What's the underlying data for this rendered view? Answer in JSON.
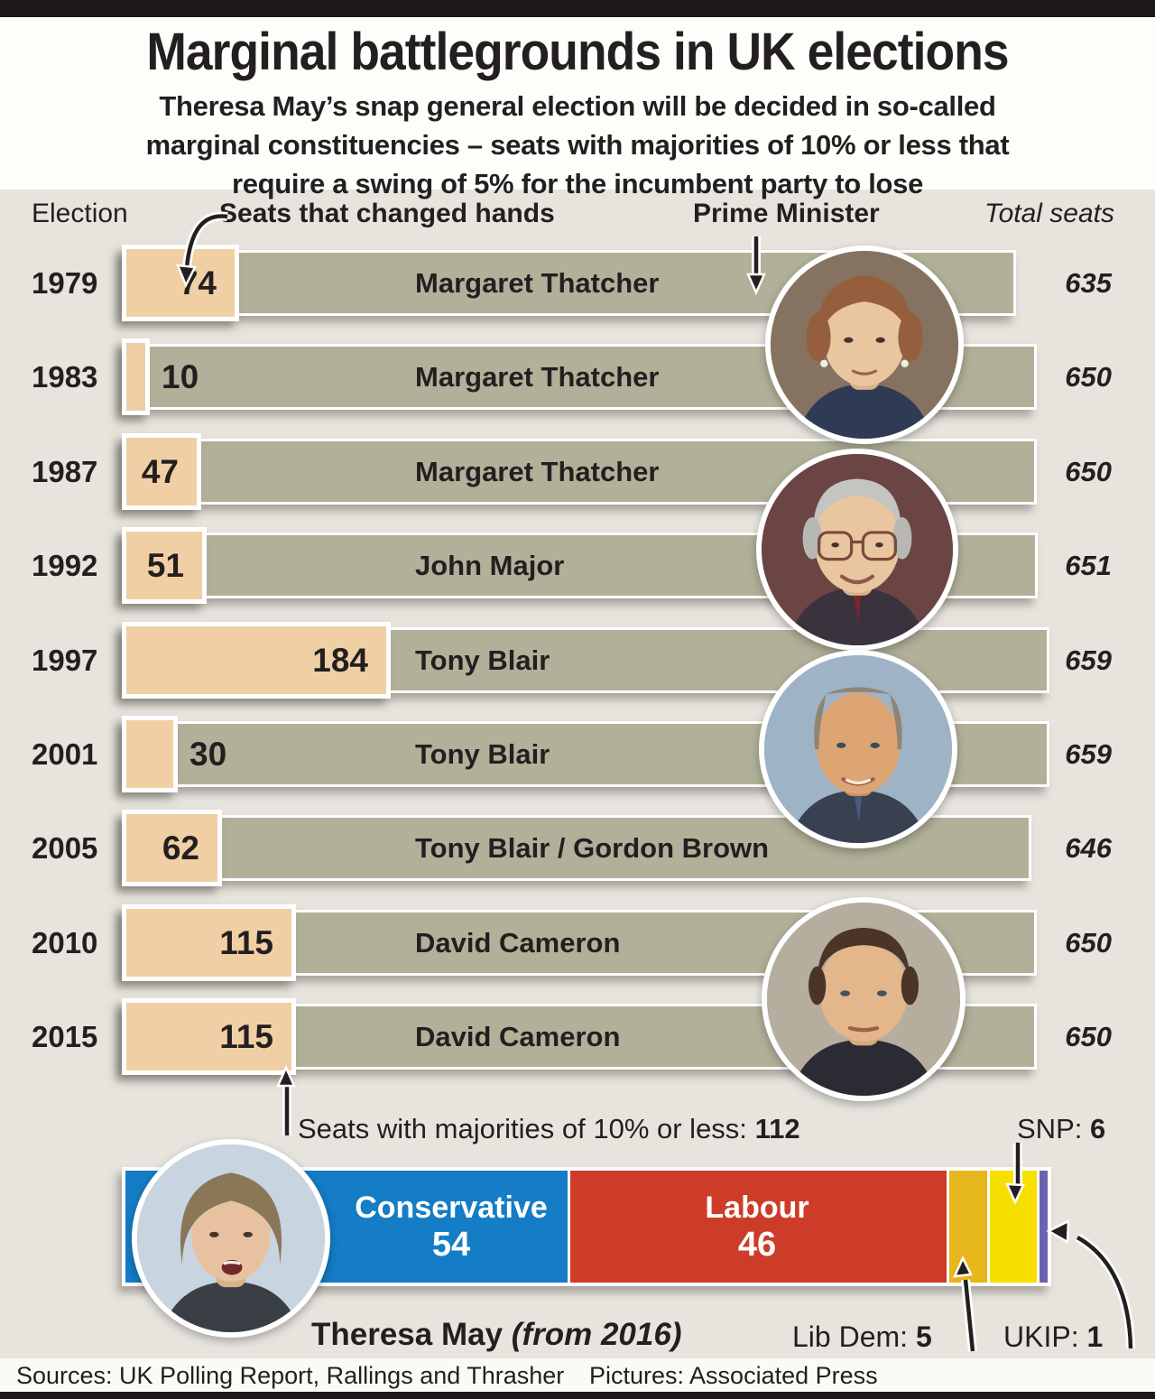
{
  "title": "Marginal battlegrounds in UK elections",
  "subtitle_lines": [
    "Theresa May’s snap general election will be decided in so-called",
    "marginal constituencies – seats with majorities of 10% or less that",
    "require a swing of 5% for the incumbent party to lose"
  ],
  "header": {
    "election": "Election",
    "changed": "Seats that changed hands",
    "pm": "Prime Minister",
    "total": "Total seats"
  },
  "rows": [
    {
      "year": "1979",
      "changed": 74,
      "pm": "Margaret Thatcher",
      "total": 635
    },
    {
      "year": "1983",
      "changed": 10,
      "pm": "Margaret Thatcher",
      "total": 650
    },
    {
      "year": "1987",
      "changed": 47,
      "pm": "Margaret Thatcher",
      "total": 650
    },
    {
      "year": "1992",
      "changed": 51,
      "pm": "John Major",
      "total": 651
    },
    {
      "year": "1997",
      "changed": 184,
      "pm": "Tony Blair",
      "total": 659
    },
    {
      "year": "2001",
      "changed": 30,
      "pm": "Tony Blair",
      "total": 659
    },
    {
      "year": "2005",
      "changed": 62,
      "pm": "Tony Blair / Gordon Brown",
      "total": 646
    },
    {
      "year": "2010",
      "changed": 115,
      "pm": "David Cameron",
      "total": 650
    },
    {
      "year": "2015",
      "changed": 115,
      "pm": "David Cameron",
      "total": 650
    }
  ],
  "note": {
    "label": "Seats with majorities of 10% or less:",
    "value": "112"
  },
  "snp": {
    "label": "SNP:",
    "value": "6"
  },
  "libdem": {
    "label": "Lib Dem:",
    "value": "5"
  },
  "ukip": {
    "label": "UKIP:",
    "value": "1"
  },
  "current_pm": {
    "name": "Theresa May",
    "note": "(from 2016)"
  },
  "stacked": {
    "total": 112,
    "segments": [
      {
        "name": "Conservative",
        "value": 54,
        "color": "#147dc6"
      },
      {
        "name": "Labour",
        "value": 46,
        "color": "#cd3c28"
      },
      {
        "name": "Lib Dem",
        "value": 5,
        "color": "#e6b71c"
      },
      {
        "name": "SNP",
        "value": 6,
        "color": "#f7e000"
      },
      {
        "name": "UKIP",
        "value": 1,
        "color": "#6b63ae"
      }
    ]
  },
  "footer": {
    "sources": "Sources: UK Polling Report, Rallings and Thrasher",
    "pictures": "Pictures: Associated Press"
  },
  "photos": [
    "Margaret Thatcher",
    "John Major",
    "Tony Blair",
    "David Cameron",
    "Theresa May"
  ],
  "colors": {
    "background": "#e7e4de",
    "bar": "#b1b19a",
    "changed_box": "#efcfa3",
    "text": "#231f20",
    "conservative": "#147dc6",
    "labour": "#cd3c28",
    "libdem": "#e6b71c",
    "snp": "#f7e000",
    "ukip": "#6b63ae"
  },
  "chart_data": [
    {
      "type": "bar",
      "orientation": "horizontal",
      "title": "Marginal battlegrounds in UK elections",
      "categories": [
        "1979",
        "1983",
        "1987",
        "1992",
        "1997",
        "2001",
        "2005",
        "2010",
        "2015"
      ],
      "series": [
        {
          "name": "Seats that changed hands",
          "values": [
            74,
            10,
            47,
            51,
            184,
            30,
            62,
            115,
            115
          ]
        },
        {
          "name": "Total seats",
          "values": [
            635,
            650,
            650,
            651,
            659,
            659,
            646,
            650,
            650
          ]
        }
      ],
      "annotations": [
        "Margaret Thatcher",
        "Margaret Thatcher",
        "Margaret Thatcher",
        "John Major",
        "Tony Blair",
        "Tony Blair",
        "Tony Blair / Gordon Brown",
        "David Cameron",
        "David Cameron"
      ],
      "legend_position": "none",
      "grid": false
    },
    {
      "type": "bar",
      "subtype": "stacked-single-row",
      "title": "Seats with majorities of 10% or less: 112",
      "categories": [
        "Conservative",
        "Labour",
        "Lib Dem",
        "SNP",
        "UKIP"
      ],
      "values": [
        54,
        46,
        5,
        6,
        1
      ],
      "colors": [
        "#147dc6",
        "#cd3c28",
        "#e6b71c",
        "#f7e000",
        "#6b63ae"
      ],
      "grid": false
    }
  ]
}
